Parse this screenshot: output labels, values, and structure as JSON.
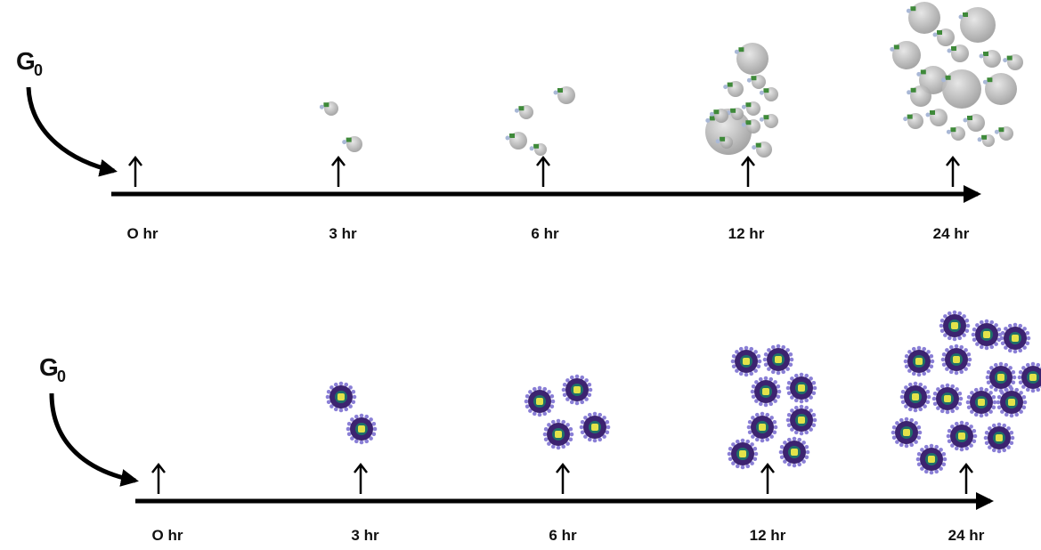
{
  "timelines": [
    {
      "start_label": {
        "base": "G",
        "sub": "0"
      },
      "time_labels": [
        "O hr",
        "3 hr",
        "6 hr",
        "12 hr",
        "24 hr"
      ]
    },
    {
      "start_label": {
        "base": "G",
        "sub": "0"
      },
      "time_labels": [
        "O hr",
        "3 hr",
        "6 hr",
        "12 hr",
        "24 hr"
      ]
    }
  ]
}
